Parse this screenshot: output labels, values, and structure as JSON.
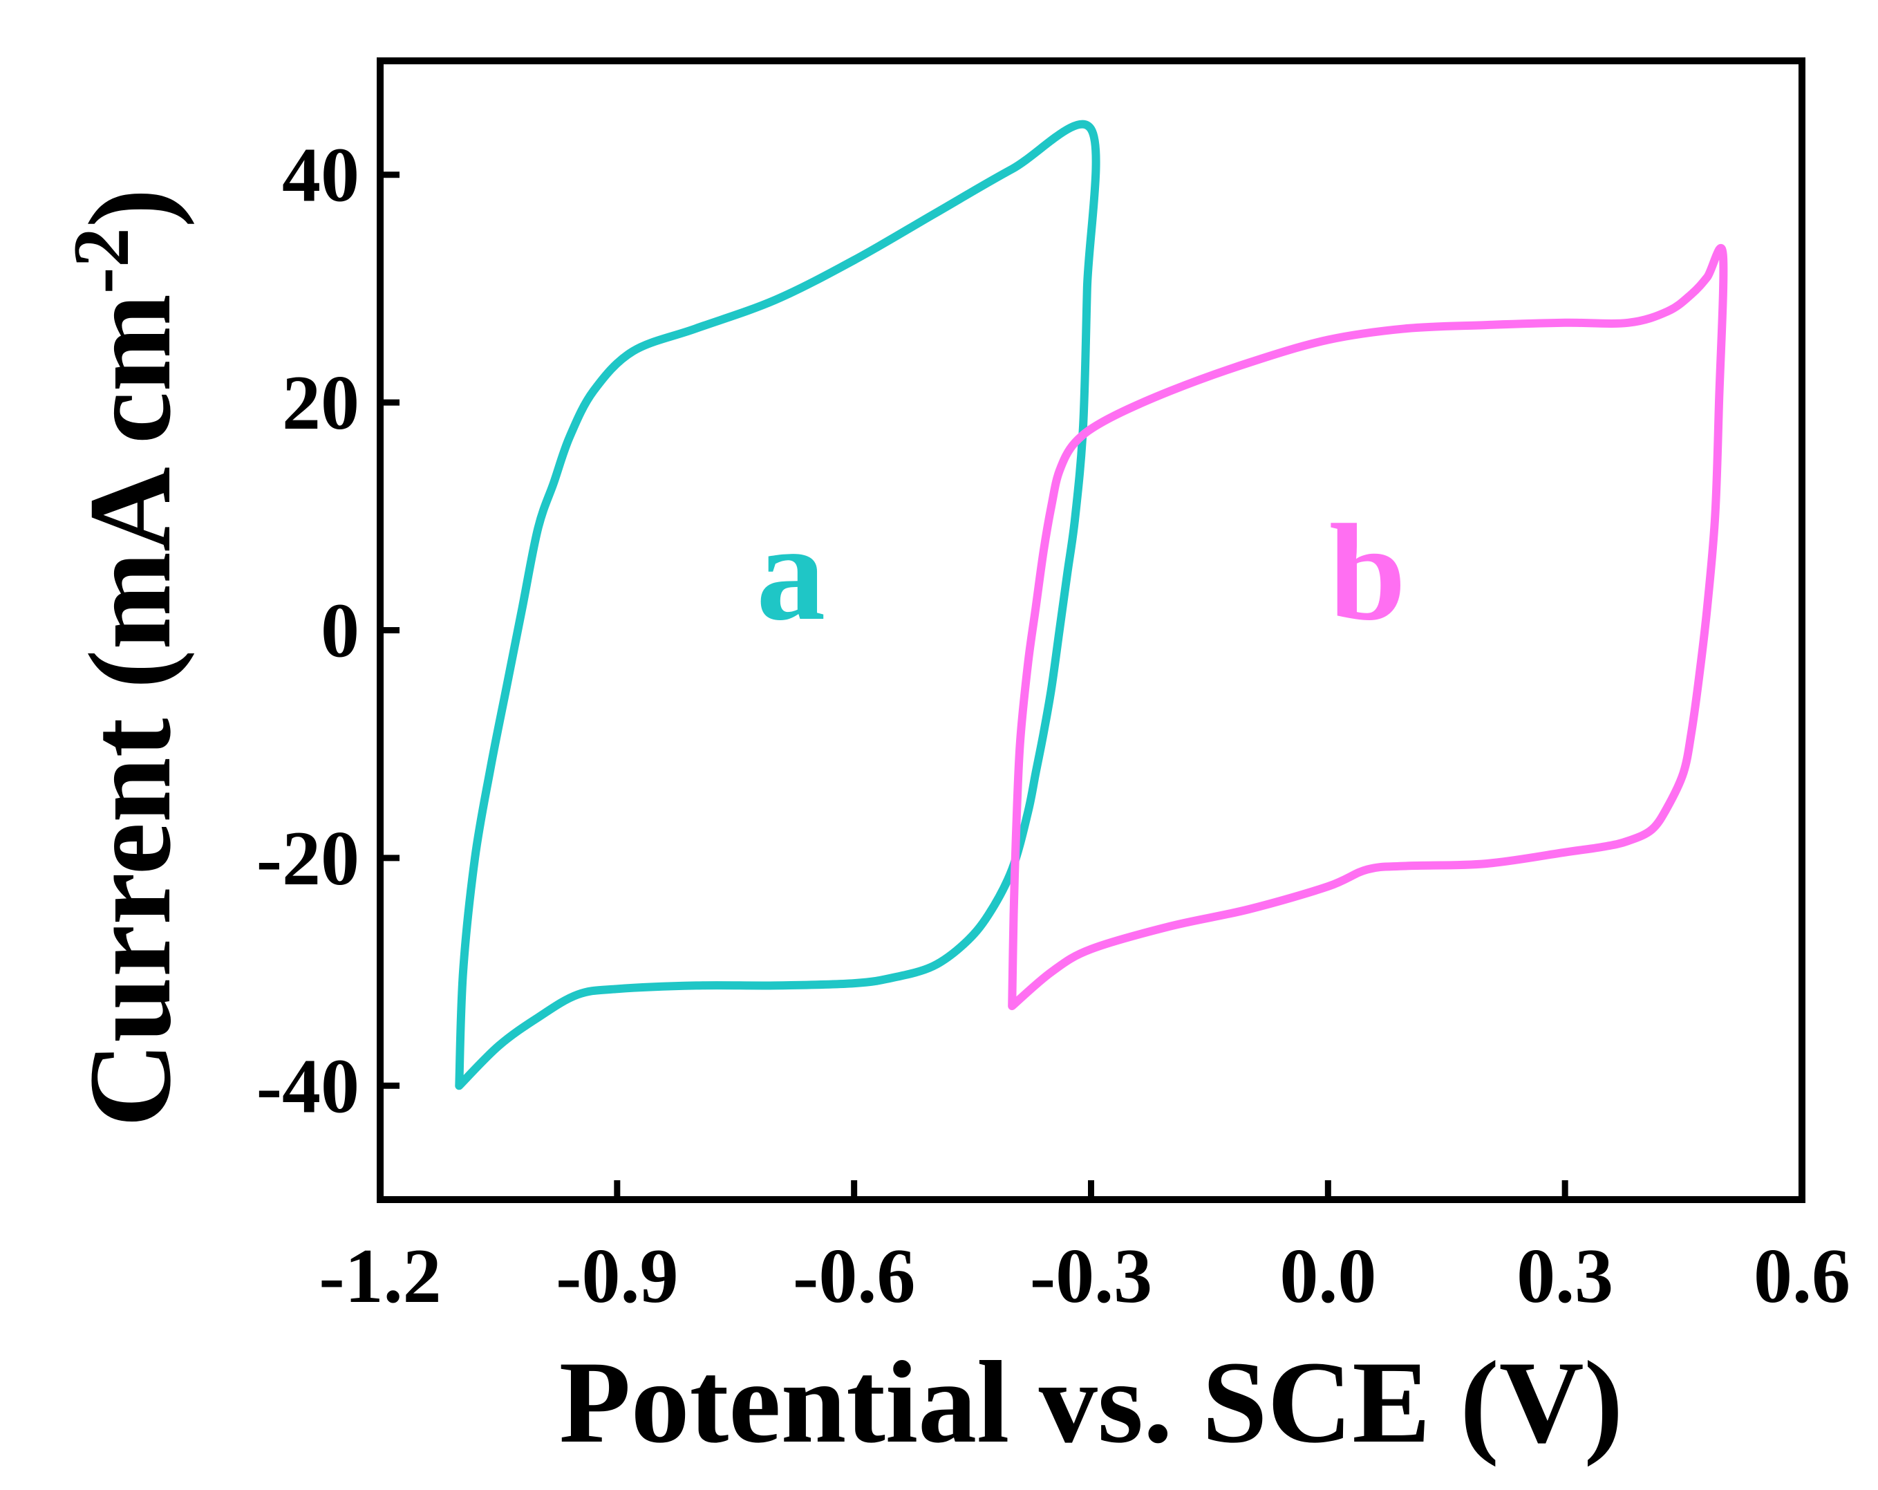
{
  "chart_data": {
    "type": "line",
    "title": "",
    "xlabel": "Potential vs. SCE (V)",
    "ylabel_main": "Current (mA cm",
    "ylabel_sup": "-2",
    "ylabel_close": ")",
    "xlim": [
      -1.2,
      0.6
    ],
    "ylim": [
      -50,
      50
    ],
    "xticks": [
      -1.2,
      -0.9,
      -0.6,
      -0.3,
      0.0,
      0.3,
      0.6
    ],
    "xtick_labels": [
      "-1.2",
      "-0.9",
      "-0.6",
      "-0.3",
      "0.0",
      "0.3",
      "0.6"
    ],
    "yticks": [
      -40,
      -20,
      0,
      20,
      40
    ],
    "ytick_labels": [
      "-40",
      "-20",
      "0",
      "20",
      "40"
    ],
    "grid": false,
    "series": [
      {
        "name": "a",
        "color": "#1FC6C6",
        "label_pos": [
          -0.68,
          1
        ],
        "x": [
          -1.1,
          -1.095,
          -1.08,
          -1.06,
          -1.04,
          -1.02,
          -1.0,
          -0.98,
          -0.96,
          -0.93,
          -0.88,
          -0.8,
          -0.7,
          -0.6,
          -0.5,
          -0.4,
          -0.3,
          -0.305,
          -0.31,
          -0.32,
          -0.33,
          -0.34,
          -0.35,
          -0.36,
          -0.37,
          -0.38,
          -0.4,
          -0.43,
          -0.46,
          -0.5,
          -0.55,
          -0.6,
          -0.7,
          -0.8,
          -0.9,
          -0.95,
          -1.0,
          -1.05,
          -1.1
        ],
        "y": [
          -40,
          -30,
          -20,
          -12,
          -5,
          2,
          9,
          13,
          17,
          21,
          24.5,
          26.5,
          29,
          32.5,
          36.5,
          40.5,
          44,
          30,
          18,
          10,
          5,
          0,
          -5,
          -9,
          -12.5,
          -16,
          -21,
          -25,
          -27.5,
          -29.5,
          -30.5,
          -31,
          -31.2,
          -31.2,
          -31.5,
          -32,
          -34,
          -36.5,
          -40
        ]
      },
      {
        "name": "b",
        "color": "#FF6FF2",
        "label_pos": [
          0.05,
          1
        ],
        "x": [
          -0.4,
          -0.398,
          -0.395,
          -0.39,
          -0.38,
          -0.37,
          -0.36,
          -0.35,
          -0.34,
          -0.32,
          -0.28,
          -0.2,
          -0.1,
          0.0,
          0.1,
          0.2,
          0.3,
          0.38,
          0.43,
          0.46,
          0.48,
          0.5,
          0.495,
          0.49,
          0.48,
          0.47,
          0.46,
          0.45,
          0.43,
          0.41,
          0.38,
          0.35,
          0.3,
          0.2,
          0.1,
          0.05,
          0.0,
          -0.1,
          -0.2,
          -0.3,
          -0.35,
          -0.4
        ],
        "y": [
          -33,
          -25,
          -18,
          -10,
          -3,
          2,
          7,
          11,
          14,
          16.5,
          18.5,
          21,
          23.5,
          25.5,
          26.5,
          26.8,
          27,
          27,
          28,
          29.5,
          31,
          33,
          20,
          10,
          2,
          -4,
          -9,
          -12.5,
          -15.5,
          -17.5,
          -18.5,
          -19,
          -19.5,
          -20.5,
          -20.7,
          -21,
          -22.5,
          -24.5,
          -26,
          -28,
          -30,
          -33
        ]
      }
    ]
  }
}
